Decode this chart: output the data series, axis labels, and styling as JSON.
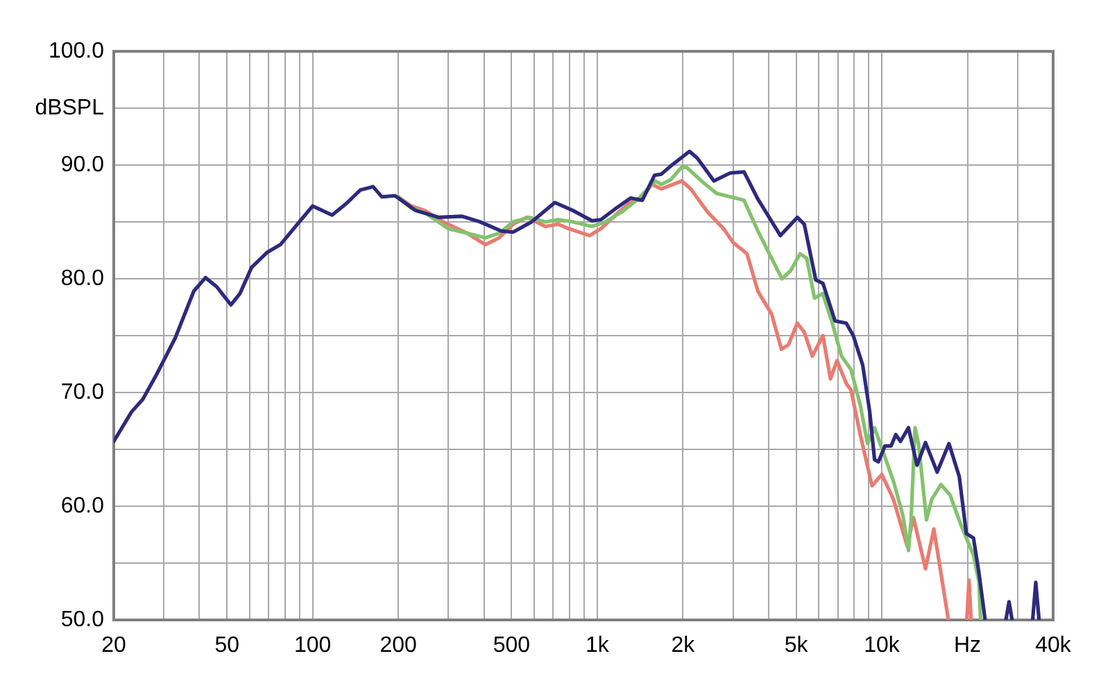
{
  "chart_data": {
    "type": "line",
    "log": "x",
    "grid": true,
    "marker": "none",
    "line_style": "solid",
    "xlim": [
      20,
      40000
    ],
    "ylim": [
      50,
      100
    ],
    "xticks": [
      20,
      {
        "value": 30,
        "label": null
      },
      {
        "value": 40,
        "label": null
      },
      50,
      {
        "value": 60,
        "label": null
      },
      {
        "value": 70,
        "label": null
      },
      {
        "value": 80,
        "label": null
      },
      {
        "value": 90,
        "label": null
      },
      100,
      200,
      {
        "value": 300,
        "label": null
      },
      {
        "value": 400,
        "label": null
      },
      500,
      {
        "value": 600,
        "label": null
      },
      {
        "value": 700,
        "label": null
      },
      {
        "value": 800,
        "label": null
      },
      {
        "value": 900,
        "label": null
      },
      {
        "value": 1000,
        "label": "1k"
      },
      {
        "value": 2000,
        "label": "2k"
      },
      {
        "value": 3000,
        "label": null
      },
      {
        "value": 4000,
        "label": null
      },
      {
        "value": 5000,
        "label": "5k"
      },
      {
        "value": 6000,
        "label": null
      },
      {
        "value": 7000,
        "label": null
      },
      {
        "value": 8000,
        "label": null
      },
      {
        "value": 9000,
        "label": null
      },
      {
        "value": 10000,
        "label": "10k"
      },
      {
        "value": 20000,
        "label": "Hz"
      },
      {
        "value": 30000,
        "label": null
      },
      {
        "value": 40000,
        "label": "40k"
      }
    ],
    "yticks": [
      {
        "value": 50,
        "label": "50.0"
      },
      {
        "value": 55,
        "label": null
      },
      {
        "value": 60,
        "label": "60.0"
      },
      {
        "value": 65,
        "label": null
      },
      {
        "value": 70,
        "label": "70.0"
      },
      {
        "value": 75,
        "label": null
      },
      {
        "value": 80,
        "label": "80.0"
      },
      {
        "value": 85,
        "label": null
      },
      {
        "value": 90,
        "label": "90.0"
      },
      {
        "value": 95,
        "label": "dBSPL"
      },
      {
        "value": 100,
        "label": "100.0"
      }
    ],
    "series": [
      {
        "color": "#2d2a7c",
        "x": [
          20,
          23.1,
          25.3,
          28.3,
          32.9,
          38.2,
          42,
          46,
          51.6,
          55.5,
          61,
          69,
          77,
          87,
          100,
          117,
          131,
          147,
          163,
          175,
          195,
          230,
          278,
          334,
          388,
          460,
          506,
          588,
          710,
          822,
          958,
          1030,
          1150,
          1310,
          1440,
          1590,
          1680,
          1810,
          2110,
          2250,
          2570,
          2930,
          3280,
          3670,
          4400,
          5050,
          5340,
          5860,
          6210,
          6850,
          7500,
          7940,
          8570,
          9070,
          9430,
          9730,
          10260,
          10780,
          11200,
          11630,
          12410,
          13300,
          14240,
          15650,
          17220,
          18720,
          19820,
          21000,
          21960,
          23080,
          25000,
          27300,
          28000,
          28700,
          31000,
          33900,
          34760,
          35700
        ],
        "values": [
          65.7,
          68.3,
          69.4,
          71.6,
          74.8,
          78.9,
          80.1,
          79.3,
          77.7,
          78.7,
          81,
          82.3,
          83,
          84.6,
          86.4,
          85.6,
          86.6,
          87.8,
          88.1,
          87.2,
          87.3,
          86,
          85.4,
          85.5,
          85,
          84.2,
          84.1,
          85,
          86.7,
          86,
          85.1,
          85.2,
          86.1,
          87.1,
          86.9,
          89.1,
          89.2,
          89.9,
          91.2,
          90.6,
          88.6,
          89.3,
          89.4,
          87,
          83.8,
          85.4,
          84.8,
          79.9,
          79.6,
          76.3,
          76.1,
          75,
          72.4,
          68.3,
          64.1,
          63.9,
          65.3,
          65.3,
          66.3,
          65.7,
          66.9,
          63.6,
          65.6,
          63,
          65.5,
          62.6,
          57.6,
          57.2,
          54.1,
          50,
          null,
          50,
          51.6,
          50,
          null,
          50,
          53.3,
          50
        ]
      },
      {
        "color": "#84c26e",
        "x": [
          200,
          222,
          248,
          300,
          349,
          404,
          452,
          506,
          577,
          658,
          730,
          822,
          958,
          1070,
          1240,
          1390,
          1600,
          1680,
          1810,
          1980,
          2060,
          2350,
          2630,
          3050,
          3280,
          3670,
          4100,
          4460,
          4780,
          5160,
          5450,
          5800,
          6200,
          6700,
          7220,
          7500,
          7800,
          8400,
          8910,
          9430,
          10000,
          10990,
          11860,
          12410,
          12660,
          13090,
          13460,
          14360,
          14980,
          16140,
          17360,
          19080,
          21000,
          21960,
          22240
        ],
        "values": [
          87.2,
          86.2,
          85.8,
          84.4,
          84,
          83.6,
          84,
          85,
          85.4,
          85,
          85.2,
          85,
          84.6,
          85,
          86,
          87,
          88.6,
          88.3,
          88.7,
          89.8,
          89.8,
          88.5,
          87.5,
          87.1,
          86.9,
          84.2,
          81.8,
          80,
          80.7,
          82.2,
          81.8,
          78.3,
          78.7,
          76.1,
          73.2,
          72.6,
          72,
          68.9,
          65.5,
          66.9,
          65.1,
          62.2,
          59.2,
          56.1,
          58.6,
          66.9,
          65.5,
          58.8,
          60.6,
          61.9,
          61,
          58.2,
          55.7,
          53.3,
          50
        ]
      },
      {
        "color": "#e97b72",
        "x": [
          200,
          222,
          248,
          288,
          349,
          404,
          452,
          506,
          566,
          658,
          730,
          794,
          940,
          1030,
          1194,
          1300,
          1420,
          1556,
          1678,
          1806,
          1982,
          2132,
          2436,
          2780,
          3000,
          3360,
          3670,
          4100,
          4440,
          4700,
          5046,
          5340,
          5700,
          6210,
          6600,
          6960,
          7500,
          7800,
          8400,
          9240,
          10000,
          10990,
          12280,
          12920,
          14240,
          15240,
          16140,
          17140,
          18500,
          19900,
          20250,
          20600
        ],
        "values": [
          87.2,
          86.4,
          86,
          85,
          84,
          83,
          83.6,
          84.8,
          85.4,
          84.6,
          84.8,
          84.4,
          83.8,
          84.4,
          85.9,
          86.7,
          87,
          88.3,
          87.9,
          88.2,
          88.6,
          87.9,
          85.9,
          84.4,
          83.2,
          82.2,
          78.9,
          76.9,
          73.8,
          74.2,
          76.1,
          75.3,
          73.2,
          75,
          71.2,
          72.8,
          70.8,
          70.2,
          66.3,
          61.8,
          62.8,
          60.6,
          56.5,
          59,
          54.5,
          58,
          54.1,
          50,
          null,
          50,
          53.5,
          50
        ]
      }
    ]
  }
}
